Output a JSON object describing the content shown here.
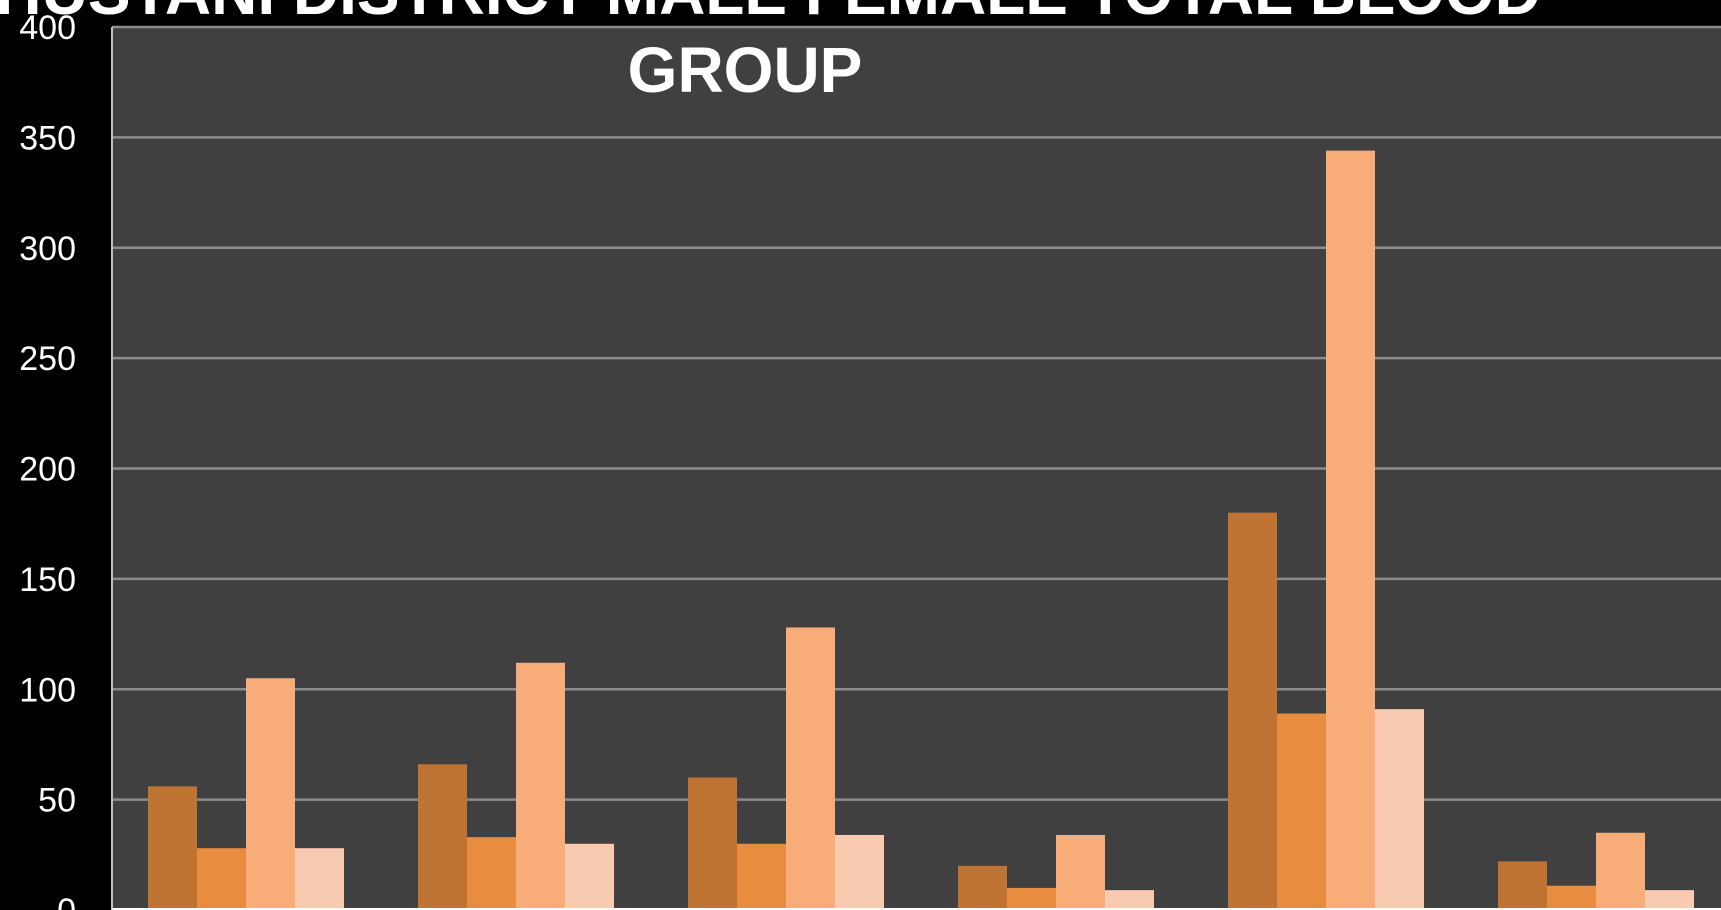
{
  "chart_data": {
    "type": "bar",
    "title_lines": [
      "KHUSTANI DISTRICT MALE FEMALE TOTAL BLOOD",
      "GROUP"
    ],
    "xlabel": "",
    "ylabel": "",
    "ylim": [
      0,
      400
    ],
    "y_ticks": [
      0,
      50,
      100,
      150,
      200,
      250,
      300,
      350,
      400
    ],
    "grid": true,
    "categories": [
      "",
      "",
      "",
      "",
      "",
      ""
    ],
    "series": [
      {
        "color": "#C07434",
        "values": [
          56,
          66,
          60,
          20,
          180,
          22
        ]
      },
      {
        "color": "#E88D40",
        "values": [
          28,
          33,
          30,
          10,
          89,
          11
        ]
      },
      {
        "color": "#F8AC78",
        "values": [
          105,
          112,
          128,
          34,
          344,
          35
        ]
      },
      {
        "color": "#F8CBB0",
        "values": [
          28,
          30,
          34,
          9,
          91,
          9
        ]
      }
    ],
    "colors": {
      "page_background": "#000000",
      "plot_background": "#404040",
      "gridline": "#8C8C8C",
      "axis_line": "#BFBFBF",
      "text": "#FFFFFF"
    }
  }
}
